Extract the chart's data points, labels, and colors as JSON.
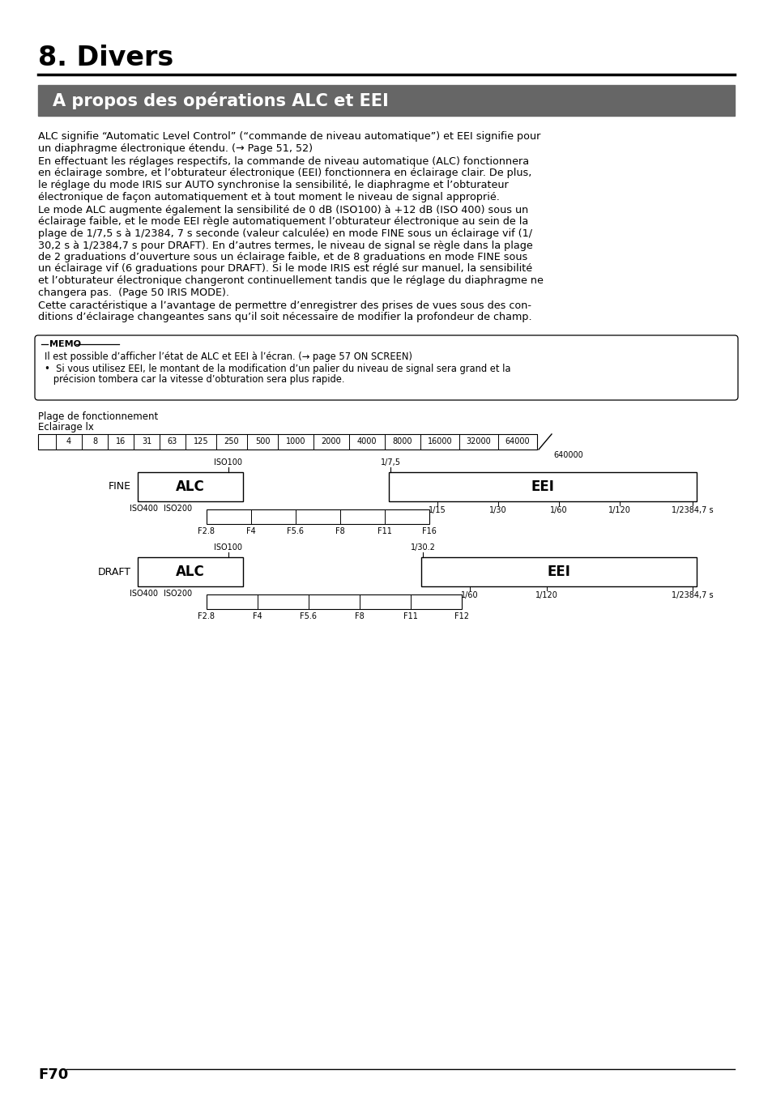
{
  "page_title": "8. Divers",
  "section_title": "A propos des opérations ALC et EEI",
  "section_bg": "#666666",
  "section_fg": "#ffffff",
  "footer": "F70",
  "bg_color": "#ffffff",
  "text_color": "#000000",
  "memo_line1": "Il est possible d’afficher l’état de ALC et EEI à l’écran. (→ page 57 ON SCREEN)",
  "memo_line2": "•  Si vous utilisez EEI, le montant de la modification d’un palier du niveau de signal sera grand et la",
  "memo_line3": "   précision tombera car la vitesse d’obturation sera plus rapide.",
  "plage_label1": "Plage de fonctionnement",
  "plage_label2": "Eclairage lx",
  "lx_cells": [
    "",
    "4",
    "8",
    "16",
    "31",
    "63",
    "125",
    "250",
    "500",
    "1000",
    "2000",
    "4000",
    "8000",
    "16000",
    "32000",
    "64000"
  ],
  "lx_extra": "640000"
}
